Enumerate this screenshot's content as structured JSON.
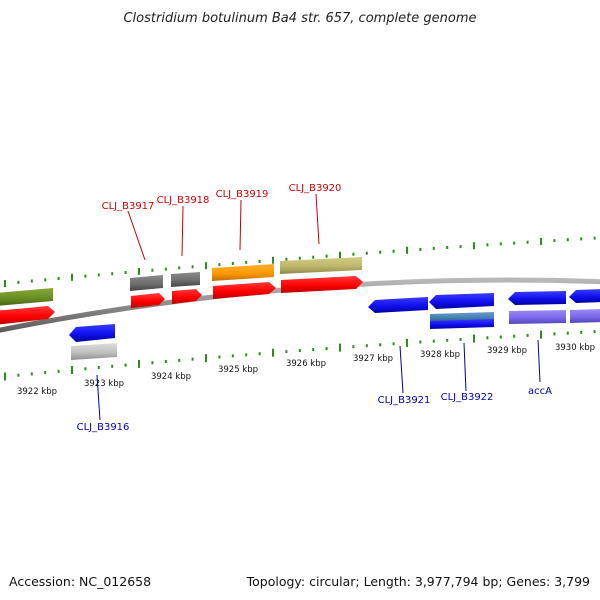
{
  "title": "Clostridium botulinum Ba4 str. 657, complete genome",
  "footer": {
    "accession": "Accession: NC_012658",
    "summary": "Topology: circular; Length: 3,977,794 bp; Genes: 3,799"
  },
  "ticks": [
    "3922 kbp",
    "3923 kbp",
    "3924 kbp",
    "3925 kbp",
    "3926 kbp",
    "3927 kbp",
    "3928 kbp",
    "3929 kbp",
    "3930 kbp"
  ],
  "gene_labels_forward": [
    "CLJ_B3917",
    "CLJ_B3918",
    "CLJ_B3919",
    "CLJ_B3920"
  ],
  "gene_labels_reverse": [
    "CLJ_B3916",
    "CLJ_B3921",
    "CLJ_B3922",
    "accA"
  ],
  "colors": {
    "backbone": "#8a8a8a",
    "tick": "#2e8b22",
    "forward_label": "#cc0000",
    "reverse_label": "#0000aa",
    "gene_red": "#ff0000",
    "gene_blue": "#1010ee",
    "gene_grey": "#6e6e6e",
    "gene_orange": "#ff9900",
    "gene_khaki": "#bdb76b",
    "gene_olive": "#6b8e23",
    "gene_steelblue": "#4682b4",
    "gene_lightgrey": "#c0c0c0",
    "gene_slateblue": "#7b68ee"
  }
}
